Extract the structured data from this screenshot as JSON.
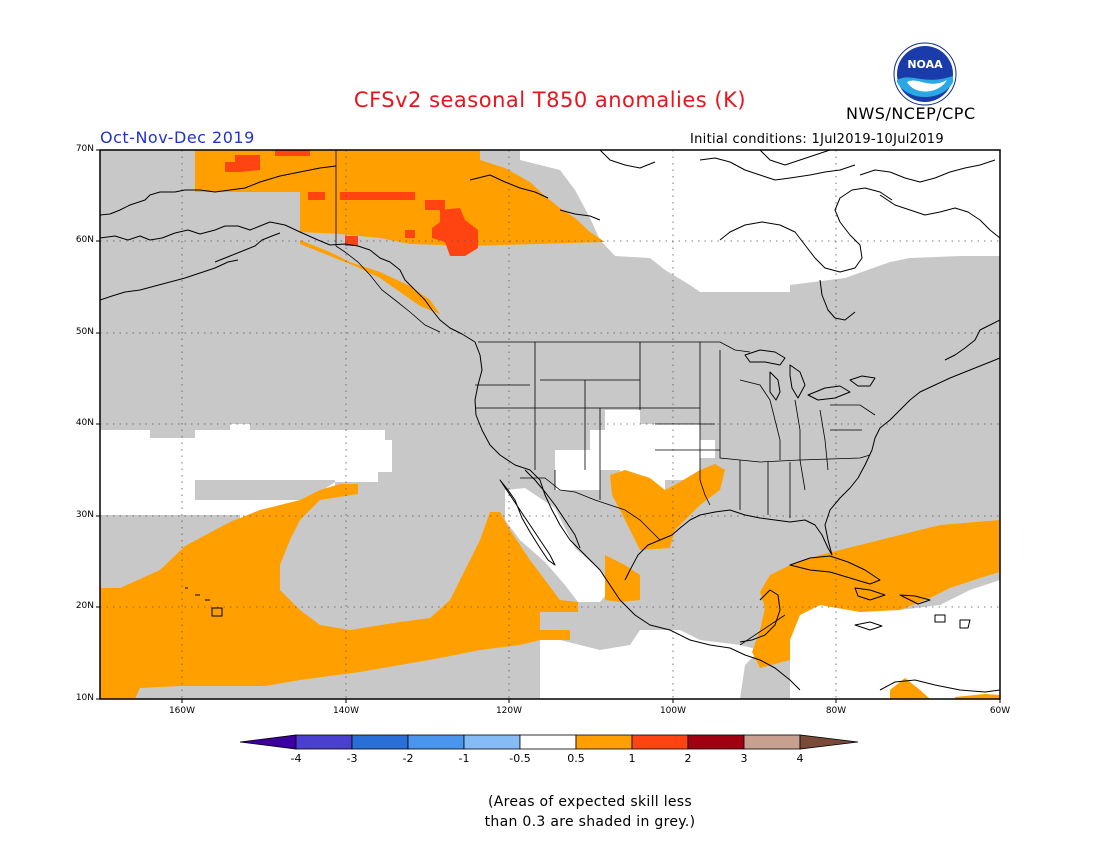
{
  "header": {
    "title": "CFSv2 seasonal T850 anomalies (K)",
    "organization": "NWS/NCEP/CPC",
    "logo_text": "NOAA",
    "season": "Oct-Nov-Dec 2019",
    "initial_conditions": "Initial conditions: 1Jul2019-10Jul2019"
  },
  "map": {
    "lat_labels": [
      "70N",
      "60N",
      "50N",
      "40N",
      "30N",
      "20N",
      "10N"
    ],
    "lon_labels": [
      "160W",
      "140W",
      "120W",
      "100W",
      "80W",
      "60W"
    ],
    "extent": {
      "lon_min": -170,
      "lon_max": -60,
      "lat_min": 10,
      "lat_max": 70
    },
    "gridlines": true
  },
  "colorbar": {
    "labels": [
      "-4",
      "-3",
      "-2",
      "-1",
      "-0.5",
      "0.5",
      "1",
      "2",
      "3",
      "4"
    ],
    "colors": [
      "#3c00a0",
      "#4b3fd0",
      "#2a6ed8",
      "#4a96ee",
      "#86bcf5",
      "#ffffff",
      "#ffa000",
      "#ff4412",
      "#a00010",
      "#c8a090",
      "#7a4a38"
    ]
  },
  "legend_note": {
    "line1": "(Areas of expected skill less",
    "line2": "than 0.3 are shaded in grey.)"
  },
  "colors": {
    "grey_low_skill": "#c8c8c8",
    "orange": "#ffa000",
    "red": "#ff4412",
    "title": "#e8141e",
    "season": "#2233cc"
  }
}
